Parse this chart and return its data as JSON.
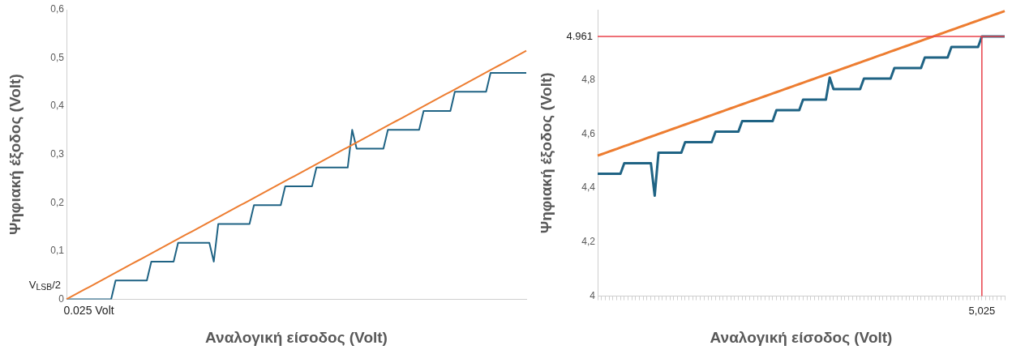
{
  "chart_data": [
    {
      "type": "line",
      "xlabel": "Αναλογική είσοδος (Volt)",
      "ylabel": "Ψηφιακή έξοδος (Volt)",
      "categories": [
        null,
        null,
        null,
        null,
        null,
        "0.025 Volt",
        null,
        null,
        null,
        null,
        null,
        null,
        null,
        null,
        null,
        null,
        null,
        null,
        null,
        null,
        null,
        null,
        null,
        null,
        null,
        null,
        null,
        null,
        null,
        null,
        null,
        null,
        null,
        null,
        null,
        null,
        null,
        null,
        null,
        null,
        null,
        null,
        null,
        null,
        null,
        null,
        null,
        null,
        null,
        null,
        null,
        null,
        null,
        null,
        null,
        null,
        null,
        null,
        null,
        null,
        null,
        null,
        null,
        null,
        null,
        null,
        null,
        null,
        null,
        null,
        null,
        null,
        null,
        null,
        null,
        null,
        null,
        null,
        null,
        null,
        null,
        null,
        null,
        null,
        null,
        null,
        null,
        null,
        null,
        null,
        null,
        null,
        null,
        null,
        null,
        null,
        null,
        null,
        null,
        null,
        null,
        null,
        null,
        null
      ],
      "ylim": [
        0,
        0.6
      ],
      "yticks": [
        0,
        {
          "value": 0.1,
          "label": "0,1"
        },
        {
          "value": 0.2,
          "label": "0,2"
        },
        {
          "value": 0.3,
          "label": "0,3"
        },
        {
          "value": 0.4,
          "label": "0,4"
        },
        {
          "value": 0.5,
          "label": "0,5"
        },
        {
          "value": 0.6,
          "label": "0,6"
        }
      ],
      "grid": false,
      "legend": false,
      "marker": "none",
      "line_style": "solid",
      "series": [
        {
          "color": "#ed7d31",
          "values": [
            0,
            0.005,
            0.01,
            0.015,
            0.02,
            0.025,
            0.03,
            0.035,
            0.04,
            0.045,
            0.05,
            0.055,
            0.06,
            0.065,
            0.07,
            0.075,
            0.08,
            0.085,
            0.09,
            0.095,
            0.1,
            0.105,
            0.11,
            0.115,
            0.12,
            0.125,
            0.13,
            0.135,
            0.14,
            0.145,
            0.15,
            0.155,
            0.16,
            0.165,
            0.17,
            0.175,
            0.18,
            0.185,
            0.19,
            0.195,
            0.2,
            0.205,
            0.21,
            0.215,
            0.22,
            0.225,
            0.23,
            0.235,
            0.24,
            0.245,
            0.25,
            0.255,
            0.26,
            0.265,
            0.27,
            0.275,
            0.28,
            0.285,
            0.29,
            0.295,
            0.3,
            0.305,
            0.31,
            0.315,
            0.32,
            0.325,
            0.33,
            0.335,
            0.34,
            0.345,
            0.35,
            0.355,
            0.36,
            0.365,
            0.37,
            0.375,
            0.38,
            0.385,
            0.39,
            0.395,
            0.4,
            0.405,
            0.41,
            0.415,
            0.42,
            0.425,
            0.43,
            0.435,
            0.44,
            0.445,
            0.45,
            0.455,
            0.46,
            0.465,
            0.47,
            0.475,
            0.48,
            0.485,
            0.49,
            0.495,
            0.5,
            0.505,
            0.51,
            0.515
          ]
        },
        {
          "color": "#1f6384",
          "values": [
            0,
            0,
            0,
            0,
            0,
            0,
            0,
            0,
            0,
            0,
            0,
            0.039,
            0.039,
            0.039,
            0.039,
            0.039,
            0.039,
            0.039,
            0.039,
            0.078,
            0.078,
            0.078,
            0.078,
            0.078,
            0.078,
            0.117,
            0.117,
            0.117,
            0.117,
            0.117,
            0.117,
            0.117,
            0.117,
            0.078,
            0.156,
            0.156,
            0.156,
            0.156,
            0.156,
            0.156,
            0.156,
            0.156,
            0.195,
            0.195,
            0.195,
            0.195,
            0.195,
            0.195,
            0.195,
            0.234,
            0.234,
            0.234,
            0.234,
            0.234,
            0.234,
            0.234,
            0.273,
            0.273,
            0.273,
            0.273,
            0.273,
            0.273,
            0.273,
            0.273,
            0.351,
            0.312,
            0.312,
            0.312,
            0.312,
            0.312,
            0.312,
            0.312,
            0.351,
            0.351,
            0.351,
            0.351,
            0.351,
            0.351,
            0.351,
            0.351,
            0.39,
            0.39,
            0.39,
            0.39,
            0.39,
            0.39,
            0.39,
            0.43,
            0.43,
            0.43,
            0.43,
            0.43,
            0.43,
            0.43,
            0.43,
            0.469,
            0.469,
            0.469,
            0.469,
            0.469,
            0.469,
            0.469,
            0.469,
            0.469
          ]
        }
      ],
      "annotations": [
        "V$_{LSB}$/2"
      ]
    },
    {
      "type": "line",
      "xlabel": "Αναλογική είσοδος (Volt)",
      "ylabel": "Ψηφιακή έξοδος (Volt)",
      "categories": [
        null,
        null,
        null,
        null,
        null,
        null,
        null,
        null,
        null,
        null,
        null,
        null,
        null,
        null,
        null,
        null,
        null,
        null,
        null,
        null,
        null,
        null,
        null,
        null,
        null,
        null,
        null,
        null,
        null,
        null,
        null,
        null,
        null,
        null,
        null,
        null,
        null,
        null,
        null,
        null,
        null,
        null,
        null,
        null,
        null,
        null,
        null,
        null,
        null,
        null,
        null,
        null,
        null,
        null,
        null,
        null,
        null,
        null,
        null,
        null,
        null,
        null,
        null,
        null,
        null,
        null,
        null,
        null,
        null,
        null,
        null,
        null,
        null,
        null,
        null,
        null,
        null,
        null,
        null,
        null,
        null,
        null,
        null,
        null,
        null,
        null,
        null,
        null,
        null,
        null,
        null,
        null,
        null,
        null,
        null,
        null,
        null,
        null,
        null,
        null,
        null,
        "5,025",
        null,
        null,
        null,
        null,
        null,
        null
      ],
      "ylim": [
        4,
        5.06
      ],
      "yticks": [
        4,
        {
          "value": 4.2,
          "label": "4,2"
        },
        {
          "value": 4.4,
          "label": "4,4"
        },
        {
          "value": 4.6,
          "label": "4,6"
        },
        {
          "value": 4.8,
          "label": "4,8"
        }
      ],
      "grid": false,
      "legend": false,
      "marker": "none",
      "line_style": "solid",
      "series": [
        {
          "color": "#ed7d31",
          "values": [
            4.52,
            4.525,
            4.53,
            4.535,
            4.54,
            4.545,
            4.55,
            4.555,
            4.56,
            4.565,
            4.57,
            4.575,
            4.58,
            4.585,
            4.59,
            4.595,
            4.6,
            4.605,
            4.61,
            4.615,
            4.62,
            4.625,
            4.63,
            4.635,
            4.64,
            4.645,
            4.65,
            4.655,
            4.66,
            4.665,
            4.67,
            4.675,
            4.68,
            4.685,
            4.69,
            4.695,
            4.7,
            4.705,
            4.71,
            4.715,
            4.72,
            4.725,
            4.73,
            4.735,
            4.74,
            4.745,
            4.75,
            4.755,
            4.76,
            4.765,
            4.77,
            4.775,
            4.78,
            4.785,
            4.79,
            4.795,
            4.8,
            4.805,
            4.81,
            4.815,
            4.82,
            4.825,
            4.83,
            4.835,
            4.84,
            4.845,
            4.85,
            4.855,
            4.86,
            4.865,
            4.87,
            4.875,
            4.88,
            4.885,
            4.89,
            4.895,
            4.9,
            4.905,
            4.91,
            4.915,
            4.92,
            4.925,
            4.93,
            4.935,
            4.94,
            4.945,
            4.95,
            4.955,
            4.96,
            4.965,
            4.97,
            4.975,
            4.98,
            4.985,
            4.99,
            4.995,
            5,
            5.005,
            5.01,
            5.015,
            5.02,
            5.025,
            5.03,
            5.035,
            5.04,
            5.045,
            5.05,
            5.055
          ]
        },
        {
          "color": "#1f6384",
          "values": [
            4.453,
            4.453,
            4.453,
            4.453,
            4.453,
            4.453,
            4.453,
            4.492,
            4.492,
            4.492,
            4.492,
            4.492,
            4.492,
            4.492,
            4.492,
            4.372,
            4.531,
            4.531,
            4.531,
            4.531,
            4.531,
            4.531,
            4.531,
            4.57,
            4.57,
            4.57,
            4.57,
            4.57,
            4.57,
            4.57,
            4.57,
            4.609,
            4.609,
            4.609,
            4.609,
            4.609,
            4.609,
            4.609,
            4.648,
            4.648,
            4.648,
            4.648,
            4.648,
            4.648,
            4.648,
            4.648,
            4.648,
            4.688,
            4.688,
            4.688,
            4.688,
            4.688,
            4.688,
            4.688,
            4.727,
            4.727,
            4.727,
            4.727,
            4.727,
            4.727,
            4.727,
            4.809,
            4.766,
            4.766,
            4.766,
            4.766,
            4.766,
            4.766,
            4.766,
            4.766,
            4.805,
            4.805,
            4.805,
            4.805,
            4.805,
            4.805,
            4.805,
            4.805,
            4.844,
            4.844,
            4.844,
            4.844,
            4.844,
            4.844,
            4.844,
            4.844,
            4.883,
            4.883,
            4.883,
            4.883,
            4.883,
            4.883,
            4.883,
            4.922,
            4.922,
            4.922,
            4.922,
            4.922,
            4.922,
            4.922,
            4.922,
            4.961,
            4.961,
            4.961,
            4.961,
            4.961,
            4.961,
            4.961
          ]
        }
      ],
      "ref_lines": [
        {
          "axis": "y",
          "value": 4.961,
          "label": "4.961",
          "color": "#e8414a"
        },
        {
          "axis": "x",
          "value": "5,025",
          "color": "#e8414a"
        }
      ]
    }
  ]
}
